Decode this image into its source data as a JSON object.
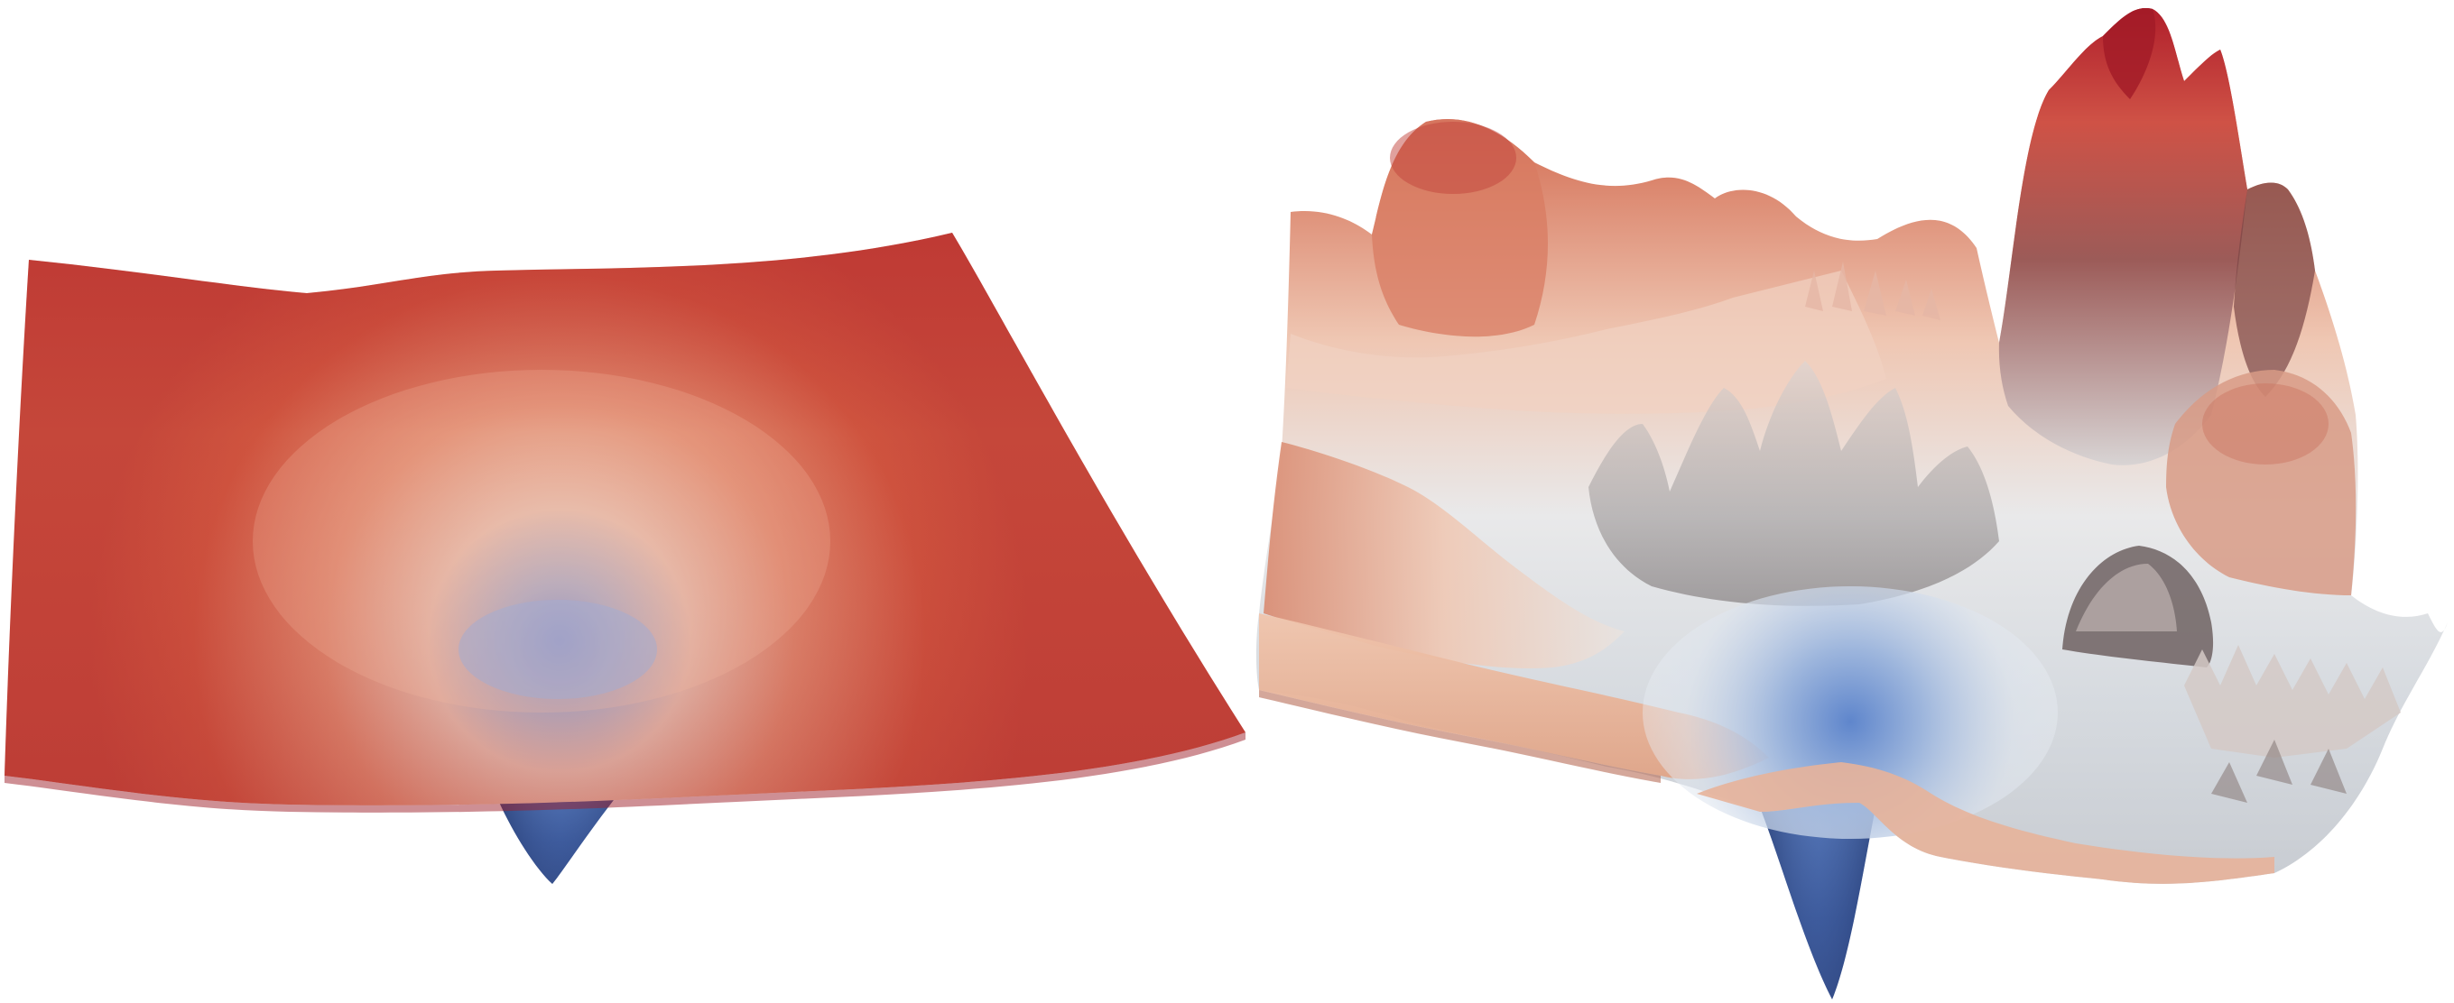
{
  "figure": {
    "panels": [
      {
        "id": "left",
        "description_name": "smooth-loss-surface"
      },
      {
        "id": "right",
        "description_name": "rugged-loss-surface"
      }
    ],
    "colors": {
      "background": "#ffffff",
      "red_dark": "#b3242c",
      "red": "#c84a3c",
      "salmon": "#e7977d",
      "light": "#e8ecef",
      "blue_light": "#8fb0dc",
      "blue": "#4a6fb5",
      "blue_dark": "#2f4a8a"
    }
  }
}
